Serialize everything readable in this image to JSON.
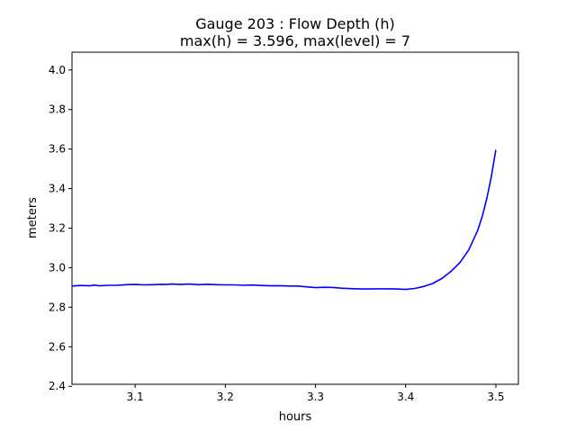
{
  "chart_data": {
    "type": "line",
    "title_line1": "Gauge 203 : Flow Depth (h)",
    "title_line2": "max(h) =   3.596,    max(level) = 7",
    "xlabel": "hours",
    "ylabel": "meters",
    "xlim": [
      3.03,
      3.525
    ],
    "ylim": [
      2.41,
      4.09
    ],
    "xticks": [
      3.1,
      3.2,
      3.3,
      3.4,
      3.5
    ],
    "xtick_labels": [
      "3.1",
      "3.2",
      "3.3",
      "3.4",
      "3.5"
    ],
    "yticks": [
      2.4,
      2.6,
      2.8,
      3.0,
      3.2,
      3.4,
      3.6,
      3.8,
      4.0
    ],
    "ytick_labels": [
      "2.4",
      "2.6",
      "2.8",
      "3.0",
      "3.2",
      "3.4",
      "3.6",
      "3.8",
      "4.0"
    ],
    "grid": false,
    "line_color": "#0000ff",
    "series": [
      {
        "x": [
          3.03,
          3.04,
          3.05,
          3.055,
          3.06,
          3.07,
          3.08,
          3.09,
          3.1,
          3.11,
          3.12,
          3.13,
          3.135,
          3.14,
          3.15,
          3.16,
          3.17,
          3.18,
          3.19,
          3.2,
          3.21,
          3.22,
          3.23,
          3.24,
          3.25,
          3.26,
          3.27,
          3.28,
          3.29,
          3.3,
          3.31,
          3.32,
          3.33,
          3.34,
          3.35,
          3.36,
          3.37,
          3.38,
          3.39,
          3.4,
          3.41,
          3.42,
          3.43,
          3.44,
          3.45,
          3.46,
          3.47,
          3.48,
          3.485,
          3.49,
          3.495,
          3.5
        ],
        "y": [
          2.907,
          2.91,
          2.908,
          2.912,
          2.908,
          2.911,
          2.911,
          2.914,
          2.915,
          2.913,
          2.914,
          2.916,
          2.915,
          2.917,
          2.915,
          2.917,
          2.914,
          2.916,
          2.914,
          2.913,
          2.913,
          2.911,
          2.912,
          2.91,
          2.908,
          2.909,
          2.907,
          2.907,
          2.903,
          2.899,
          2.901,
          2.9,
          2.896,
          2.894,
          2.892,
          2.892,
          2.893,
          2.893,
          2.892,
          2.89,
          2.895,
          2.905,
          2.92,
          2.945,
          2.98,
          3.025,
          3.09,
          3.19,
          3.26,
          3.35,
          3.46,
          3.596
        ]
      }
    ]
  }
}
